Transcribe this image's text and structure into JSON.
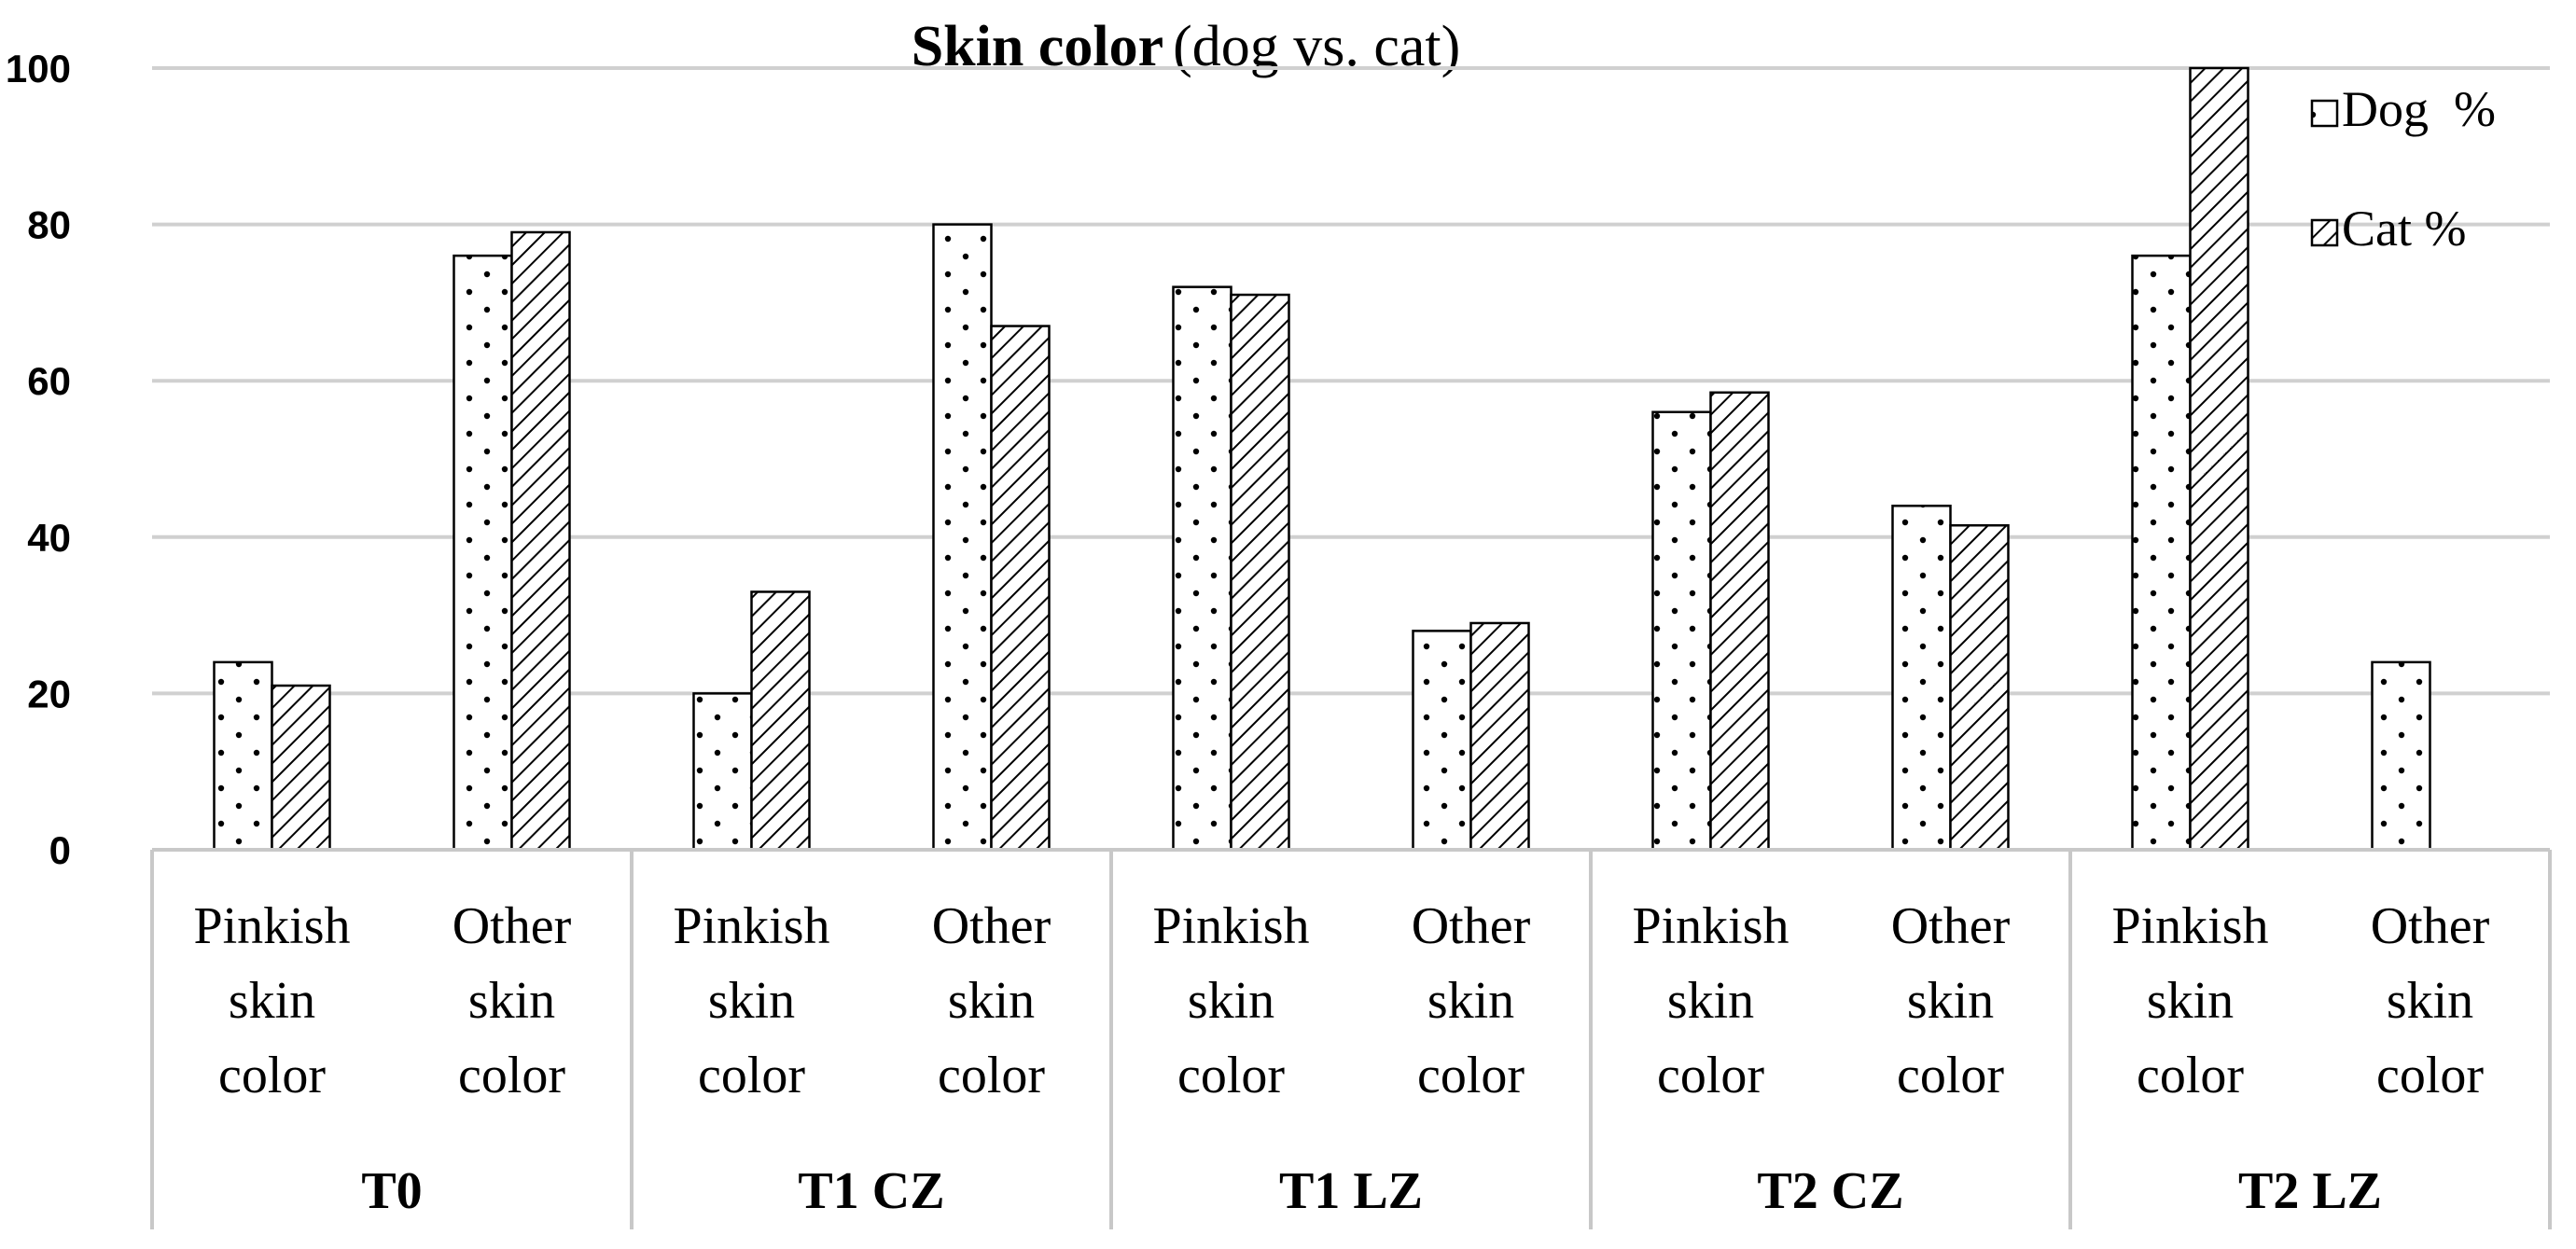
{
  "chart_data": {
    "type": "bar",
    "title": "Skin color",
    "subtitle": "(dog vs. cat)",
    "ylim": [
      0,
      100
    ],
    "yticks": [
      0,
      20,
      40,
      60,
      80,
      100
    ],
    "grid": true,
    "legend_position": "top-right",
    "groups": [
      {
        "label": "T0",
        "categories": [
          "Pinkish skin color",
          "Other skin color"
        ]
      },
      {
        "label": "T1 CZ",
        "categories": [
          "Pinkish skin color",
          "Other skin color"
        ]
      },
      {
        "label": "T1 LZ",
        "categories": [
          "Pinkish skin color",
          "Other skin color"
        ]
      },
      {
        "label": "T2 CZ",
        "categories": [
          "Pinkish skin color",
          "Other skin color"
        ]
      },
      {
        "label": "T2 LZ",
        "categories": [
          "Pinkish skin color",
          "Other skin color"
        ]
      }
    ],
    "category_lines": [
      [
        "Pinkish",
        "skin",
        "color"
      ],
      [
        "Other",
        "skin",
        "color"
      ]
    ],
    "series": [
      {
        "name": "Dog  %",
        "pattern": "dots",
        "values": [
          24,
          76,
          20,
          80,
          72,
          28,
          56,
          44,
          76,
          24
        ]
      },
      {
        "name": "Cat %",
        "pattern": "hatch",
        "values": [
          21,
          79,
          33,
          67,
          71,
          29,
          58.5,
          41.5,
          100,
          0
        ]
      }
    ],
    "colors": {
      "grid": "#d0d0d0",
      "bar_stroke": "#000000",
      "axis": "#c8c8c8"
    }
  }
}
